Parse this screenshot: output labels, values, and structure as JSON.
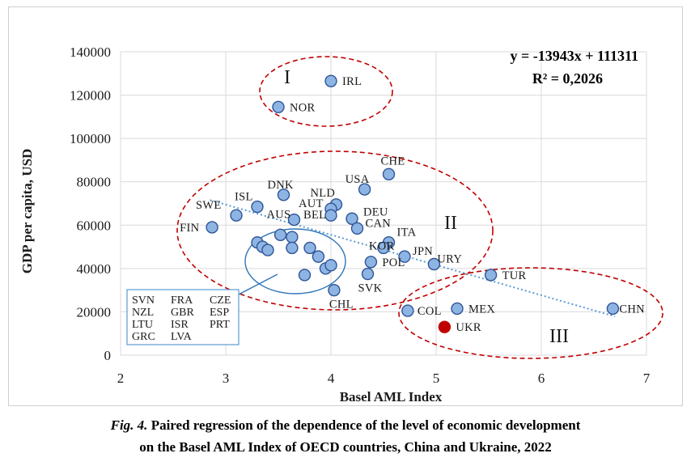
{
  "chart_data": {
    "type": "scatter",
    "title": "",
    "xlabel": "Basel AML Index",
    "ylabel": "GDP per capita, USD",
    "xlim": [
      2,
      7
    ],
    "ylim": [
      0,
      140000
    ],
    "xticks": [
      "2",
      "3",
      "4",
      "5",
      "6",
      "7"
    ],
    "yticks": [
      "0",
      "20000",
      "40000",
      "60000",
      "80000",
      "100000",
      "120000",
      "140000"
    ],
    "equation": "y = -13943x + 111311",
    "r_squared": "R² = 0,2026",
    "trendline": {
      "slope": -13943,
      "intercept": 111311,
      "x_range": [
        2.85,
        6.7
      ]
    },
    "points": [
      {
        "label": "IRL",
        "x": 4.0,
        "y": 126500
      },
      {
        "label": "NOR",
        "x": 3.5,
        "y": 114500
      },
      {
        "label": "CHE",
        "x": 4.55,
        "y": 83500
      },
      {
        "label": "USA",
        "x": 4.32,
        "y": 76500
      },
      {
        "label": "DNK",
        "x": 3.55,
        "y": 74000
      },
      {
        "label": "NLD",
        "x": 4.05,
        "y": 69500
      },
      {
        "label": "ISL",
        "x": 3.3,
        "y": 68500
      },
      {
        "label": "AUT",
        "x": 4.0,
        "y": 67500
      },
      {
        "label": "SWE",
        "x": 3.1,
        "y": 64500
      },
      {
        "label": "BEL",
        "x": 4.0,
        "y": 64500
      },
      {
        "label": "AUS",
        "x": 3.65,
        "y": 62500
      },
      {
        "label": "DEU",
        "x": 4.2,
        "y": 63000
      },
      {
        "label": "FIN",
        "x": 2.87,
        "y": 59000
      },
      {
        "label": "CAN",
        "x": 4.25,
        "y": 58500
      },
      {
        "label": "ITA",
        "x": 4.55,
        "y": 52000
      },
      {
        "label": "KOR",
        "x": 4.5,
        "y": 49500
      },
      {
        "label": "JPN",
        "x": 4.7,
        "y": 45500
      },
      {
        "label": "URY",
        "x": 4.98,
        "y": 42000
      },
      {
        "label": "POL",
        "x": 4.38,
        "y": 43000
      },
      {
        "label": "SVK",
        "x": 4.35,
        "y": 37500
      },
      {
        "label": "CHL",
        "x": 4.03,
        "y": 30000
      },
      {
        "label": "TUR",
        "x": 5.52,
        "y": 37000
      },
      {
        "label": "CHN",
        "x": 6.68,
        "y": 21500
      },
      {
        "label": "MEX",
        "x": 5.2,
        "y": 21500
      },
      {
        "label": "COL",
        "x": 4.73,
        "y": 20500
      },
      {
        "label": "UKR",
        "x": 5.08,
        "y": 13000,
        "highlight": true
      },
      {
        "label": "",
        "x": 3.3,
        "y": 52000
      },
      {
        "label": "",
        "x": 3.35,
        "y": 50000
      },
      {
        "label": "",
        "x": 3.4,
        "y": 48500
      },
      {
        "label": "",
        "x": 3.52,
        "y": 55500
      },
      {
        "label": "",
        "x": 3.63,
        "y": 54500
      },
      {
        "label": "",
        "x": 3.63,
        "y": 49500
      },
      {
        "label": "",
        "x": 3.75,
        "y": 37000
      },
      {
        "label": "",
        "x": 3.8,
        "y": 49500
      },
      {
        "label": "",
        "x": 3.88,
        "y": 45500
      },
      {
        "label": "",
        "x": 3.95,
        "y": 40000
      },
      {
        "label": "",
        "x": 4.0,
        "y": 41500
      }
    ],
    "groups": [
      "I",
      "II",
      "III"
    ],
    "cluster_box": {
      "rows": [
        [
          "SVN",
          "FRA",
          "CZE"
        ],
        [
          "NZL",
          "GBR",
          "ESP"
        ],
        [
          "LTU",
          "ISR",
          "PRT"
        ],
        [
          "GRC",
          "LVA",
          ""
        ]
      ]
    },
    "colors": {
      "point_fill": "#8eb4e3",
      "point_stroke": "#2f5597",
      "highlight": "#c00000",
      "trend": "#5b9bd5",
      "ellipse": "#c00000",
      "cluster_ellipse": "#2e75b6"
    }
  },
  "caption": {
    "fig": "Fig. 4.",
    "line1": "Paired regression of the dependence of the level of economic development",
    "line2": "on the Basel AML Index of OECD countries, China and Ukraine, 2022"
  }
}
